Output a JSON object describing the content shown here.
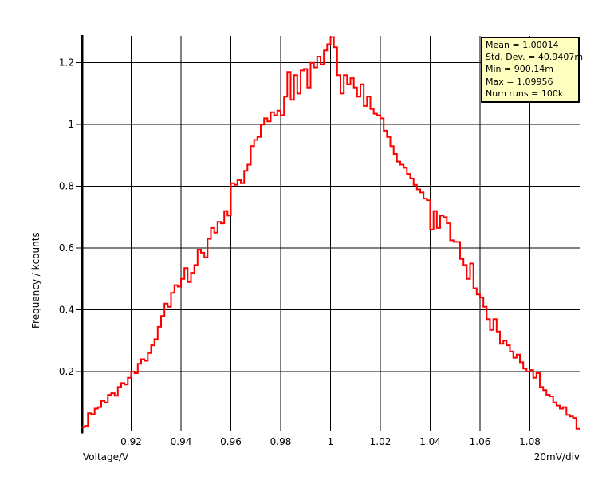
{
  "window": {
    "background": "#FFFFFF"
  },
  "legend": {
    "background": "#FFFFC0",
    "border_color": "#000000",
    "lines": [
      "Mean = 1.00014",
      "Std. Dev. = 40.9407m",
      "Min = 900.14m",
      "Max = 1.09956",
      "Num runs = 100k"
    ]
  },
  "chart_data": {
    "type": "bar",
    "render_style": "histogram-step-outline",
    "title": "",
    "xlabel": "Voltage/V",
    "ylabel": "Frequency / kcounts",
    "scale_note": "20mV/div",
    "line_color": "#FF0000",
    "grid_color": "#000000",
    "axis_color": "#000000",
    "grid": true,
    "legend_position": "top-right",
    "xlim": [
      0.9,
      1.1
    ],
    "ylim": [
      0,
      1.287
    ],
    "x_ticks": {
      "values": [
        0.92,
        0.94,
        0.96,
        0.98,
        1.0,
        1.02,
        1.04,
        1.06,
        1.08
      ],
      "labels": [
        "0.92",
        "0.94",
        "0.96",
        "0.98",
        "1",
        "1.02",
        "1.04",
        "1.06",
        "1.08"
      ]
    },
    "y_ticks": {
      "values": [
        0.2,
        0.4,
        0.6,
        0.8,
        1.0,
        1.2
      ],
      "labels": [
        "0.2",
        "0.4",
        "0.6",
        "0.8",
        "1",
        "1.2"
      ]
    },
    "bins": {
      "start": 0.9,
      "width": 0.00133333,
      "count": 150
    },
    "values_kcounts": [
      0.02,
      0.024,
      0.065,
      0.062,
      0.08,
      0.085,
      0.105,
      0.1,
      0.125,
      0.13,
      0.122,
      0.15,
      0.163,
      0.158,
      0.18,
      0.2,
      0.195,
      0.225,
      0.24,
      0.235,
      0.26,
      0.285,
      0.305,
      0.345,
      0.38,
      0.42,
      0.41,
      0.455,
      0.48,
      0.475,
      0.5,
      0.535,
      0.49,
      0.52,
      0.545,
      0.595,
      0.585,
      0.57,
      0.63,
      0.665,
      0.65,
      0.685,
      0.68,
      0.72,
      0.705,
      0.81,
      0.805,
      0.82,
      0.81,
      0.85,
      0.87,
      0.93,
      0.95,
      0.96,
      1.0,
      1.02,
      1.01,
      1.04,
      1.03,
      1.045,
      1.03,
      1.09,
      1.17,
      1.08,
      1.16,
      1.1,
      1.175,
      1.18,
      1.12,
      1.2,
      1.185,
      1.22,
      1.195,
      1.24,
      1.26,
      1.283,
      1.25,
      1.16,
      1.1,
      1.16,
      1.13,
      1.15,
      1.12,
      1.09,
      1.13,
      1.06,
      1.09,
      1.05,
      1.035,
      1.03,
      1.02,
      0.98,
      0.96,
      0.93,
      0.905,
      0.88,
      0.87,
      0.86,
      0.84,
      0.825,
      0.805,
      0.79,
      0.78,
      0.76,
      0.755,
      0.66,
      0.72,
      0.665,
      0.705,
      0.7,
      0.68,
      0.625,
      0.62,
      0.62,
      0.565,
      0.545,
      0.5,
      0.55,
      0.47,
      0.45,
      0.44,
      0.41,
      0.37,
      0.335,
      0.37,
      0.33,
      0.29,
      0.3,
      0.285,
      0.265,
      0.245,
      0.255,
      0.23,
      0.21,
      0.2,
      0.205,
      0.18,
      0.195,
      0.15,
      0.14,
      0.125,
      0.12,
      0.1,
      0.09,
      0.08,
      0.085,
      0.06,
      0.055,
      0.05,
      0.015
    ],
    "stats": {
      "mean": "1.00014",
      "std_dev": "40.9407m",
      "min": "900.14m",
      "max": "1.09956",
      "num_runs": "100k"
    }
  }
}
